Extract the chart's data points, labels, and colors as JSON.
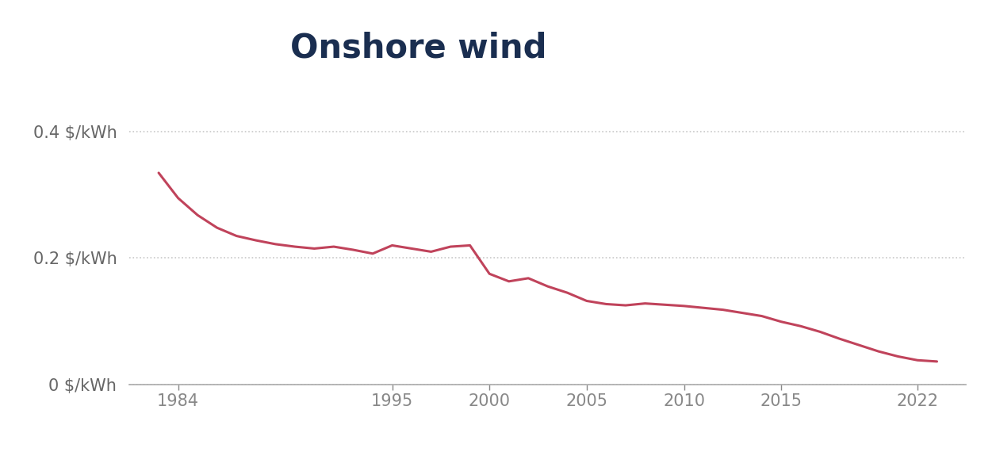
{
  "title": "Onshore wind",
  "title_color": "#1a2e50",
  "title_fontsize": 30,
  "line_color": "#c0435b",
  "line_width": 2.2,
  "background_color": "#ffffff",
  "years": [
    1983,
    1984,
    1985,
    1986,
    1987,
    1988,
    1989,
    1990,
    1991,
    1992,
    1993,
    1994,
    1995,
    1996,
    1997,
    1998,
    1999,
    2000,
    2001,
    2002,
    2003,
    2004,
    2005,
    2006,
    2007,
    2008,
    2009,
    2010,
    2011,
    2012,
    2013,
    2014,
    2015,
    2016,
    2017,
    2018,
    2019,
    2020,
    2021,
    2022,
    2023
  ],
  "values": [
    0.335,
    0.295,
    0.268,
    0.248,
    0.235,
    0.228,
    0.222,
    0.218,
    0.215,
    0.218,
    0.213,
    0.207,
    0.22,
    0.215,
    0.21,
    0.218,
    0.22,
    0.175,
    0.163,
    0.168,
    0.155,
    0.145,
    0.132,
    0.127,
    0.125,
    0.128,
    0.126,
    0.124,
    0.121,
    0.118,
    0.113,
    0.108,
    0.099,
    0.092,
    0.083,
    0.072,
    0.062,
    0.052,
    0.044,
    0.038,
    0.036
  ],
  "ylim": [
    0,
    0.48
  ],
  "yticks": [
    0,
    0.2,
    0.4
  ],
  "ytick_labels": [
    "0 $/kWh",
    "0.2 $/kWh",
    "0.4 $/kWh"
  ],
  "xlim": [
    1981.5,
    2024.5
  ],
  "xticks": [
    1984,
    1995,
    2000,
    2005,
    2010,
    2015,
    2022
  ],
  "grid_color": "#c8c8c8",
  "grid_style": ":",
  "grid_linewidth": 1.2,
  "tick_color": "#888888",
  "spine_color": "#aaaaaa",
  "ytick_color": "#666666",
  "xtick_color": "#555555"
}
